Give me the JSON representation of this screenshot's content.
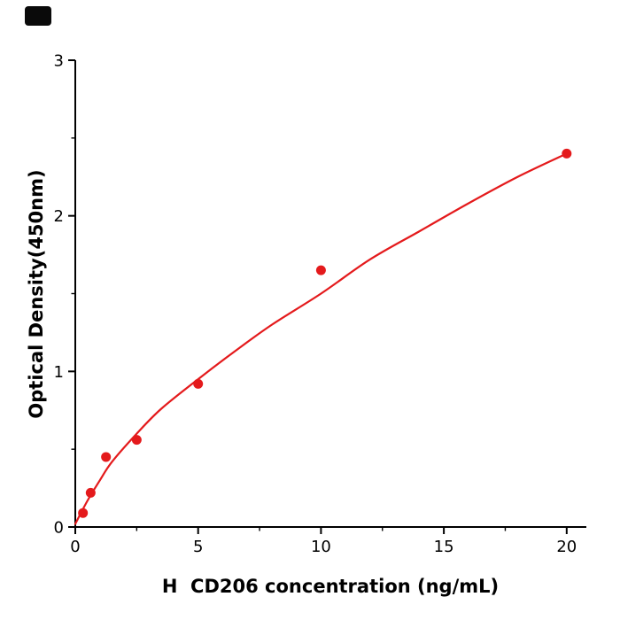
{
  "chart_data": {
    "type": "scatter",
    "title": "",
    "xlabel": "H  CD206 concentration (ng/mL)",
    "ylabel": "Optical Density(450nm)",
    "xlim": [
      0,
      20.8
    ],
    "ylim": [
      0,
      3
    ],
    "x_ticks": [
      0,
      5,
      10,
      15,
      20
    ],
    "y_ticks": [
      0,
      1,
      2,
      3
    ],
    "x_minor_ticks": [
      2.5,
      7.5,
      12.5,
      17.5
    ],
    "y_minor_ticks": [
      0.5,
      1.5,
      2.5
    ],
    "grid": false,
    "legend": false,
    "points": [
      [
        0.3125,
        0.09
      ],
      [
        0.625,
        0.22
      ],
      [
        1.25,
        0.45
      ],
      [
        2.5,
        0.56
      ],
      [
        5,
        0.92
      ],
      [
        10,
        1.65
      ],
      [
        20,
        2.4
      ]
    ],
    "fit_curve": [
      [
        0,
        0.02
      ],
      [
        0.5,
        0.17
      ],
      [
        1,
        0.3
      ],
      [
        1.5,
        0.42
      ],
      [
        2.5,
        0.6
      ],
      [
        3.5,
        0.76
      ],
      [
        5,
        0.95
      ],
      [
        6.5,
        1.13
      ],
      [
        8,
        1.3
      ],
      [
        10,
        1.5
      ],
      [
        12,
        1.72
      ],
      [
        14,
        1.9
      ],
      [
        16,
        2.08
      ],
      [
        18,
        2.25
      ],
      [
        20,
        2.4
      ]
    ],
    "point_color": "#e41a1c",
    "line_color": "#e41a1c",
    "axis_color": "#000000",
    "marker_radius": 5.5,
    "line_width": 2.2
  },
  "decor": {
    "corner_mark_color": "#0a0a0a"
  }
}
